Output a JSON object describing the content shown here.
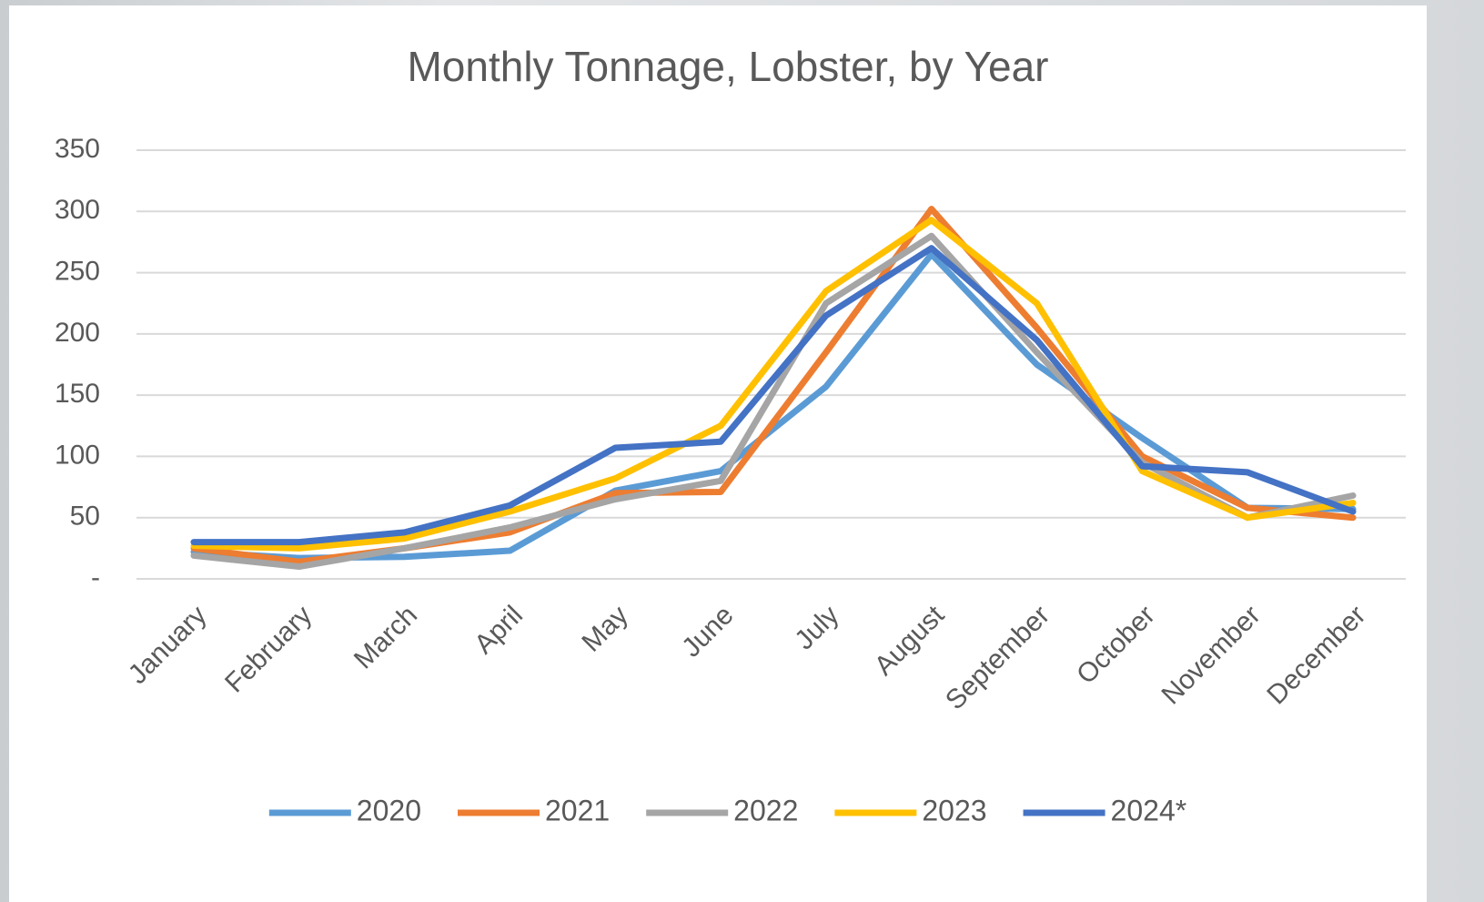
{
  "chart_data": {
    "type": "line",
    "title": "Monthly Tonnage, Lobster, by Year",
    "categories": [
      "January",
      "February",
      "March",
      "April",
      "May",
      "June",
      "July",
      "August",
      "September",
      "October",
      "November",
      "December"
    ],
    "series": [
      {
        "name": "2020",
        "color": "#5b9bd5",
        "values": [
          22,
          17,
          18,
          23,
          72,
          88,
          157,
          265,
          175,
          115,
          58,
          57
        ]
      },
      {
        "name": "2021",
        "color": "#ed7d31",
        "values": [
          25,
          14,
          25,
          38,
          70,
          71,
          185,
          302,
          205,
          100,
          58,
          50
        ]
      },
      {
        "name": "2022",
        "color": "#a5a5a5",
        "values": [
          19,
          10,
          25,
          42,
          65,
          80,
          225,
          280,
          185,
          95,
          50,
          68
        ]
      },
      {
        "name": "2023",
        "color": "#ffc000",
        "values": [
          27,
          25,
          33,
          55,
          82,
          125,
          235,
          293,
          225,
          88,
          50,
          62
        ]
      },
      {
        "name": "2024*",
        "color": "#4472c4",
        "values": [
          30,
          30,
          38,
          60,
          107,
          112,
          215,
          270,
          195,
          92,
          87,
          55
        ]
      }
    ],
    "ylim": [
      0,
      350
    ],
    "yticks": [
      {
        "value": 0,
        "label": "-"
      },
      50,
      100,
      150,
      200,
      250,
      300,
      350
    ],
    "grid": true,
    "legend": "bottom"
  }
}
